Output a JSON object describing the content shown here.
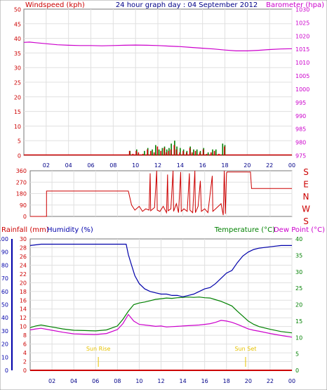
{
  "title": "24 hour graph day : 04 September 2012",
  "colors": {
    "wind": "#cc0000",
    "gust": "#008000",
    "baro": "#cc00cc",
    "rain": "#cc0000",
    "humidity": "#0000aa",
    "temp": "#008000",
    "dew": "#cc00cc",
    "sun": "#e6c200",
    "axis": "#888888"
  },
  "x_ticks": [
    "02",
    "04",
    "06",
    "08",
    "10",
    "12",
    "14",
    "16",
    "18",
    "20",
    "22",
    "00"
  ],
  "chart_data": [
    {
      "type": "bar",
      "name": "wind-baro",
      "left_label": "Windspeed (kph)",
      "right_label": "Barometer (hpa)",
      "left_ticks": [
        "0",
        "5",
        "10",
        "15",
        "20",
        "25",
        "30",
        "35",
        "40",
        "45",
        "50"
      ],
      "right_ticks": [
        "975",
        "980",
        "985",
        "990",
        "995",
        "1000",
        "1005",
        "1010",
        "1015",
        "1020",
        "1025",
        "1030"
      ],
      "ylim_left": [
        0,
        50
      ],
      "ylim_right": [
        975,
        1030
      ],
      "xlim": [
        0,
        24
      ],
      "barometer": [
        [
          0,
          1017.5
        ],
        [
          0.5,
          1017.6
        ],
        [
          1,
          1017.4
        ],
        [
          2,
          1017.0
        ],
        [
          3,
          1016.6
        ],
        [
          4,
          1016.4
        ],
        [
          5,
          1016.3
        ],
        [
          6,
          1016.3
        ],
        [
          7,
          1016.2
        ],
        [
          8,
          1016.3
        ],
        [
          9,
          1016.4
        ],
        [
          10,
          1016.5
        ],
        [
          11,
          1016.4
        ],
        [
          12,
          1016.3
        ],
        [
          13,
          1016.1
        ],
        [
          14,
          1015.9
        ],
        [
          15,
          1015.6
        ],
        [
          16,
          1015.3
        ],
        [
          17,
          1015.0
        ],
        [
          18,
          1014.6
        ],
        [
          19,
          1014.3
        ],
        [
          20,
          1014.3
        ],
        [
          21,
          1014.5
        ],
        [
          22,
          1014.8
        ],
        [
          23,
          1015.0
        ],
        [
          24,
          1015.1
        ]
      ],
      "windspeed_bars": [
        [
          9.4,
          1.5
        ],
        [
          9.7,
          0.5
        ],
        [
          10.0,
          1.5
        ],
        [
          10.2,
          1.0
        ],
        [
          10.6,
          0.5
        ],
        [
          11.0,
          2.0
        ],
        [
          11.3,
          1.5
        ],
        [
          11.6,
          1.0
        ],
        [
          11.9,
          3.0
        ],
        [
          12.2,
          1.5
        ],
        [
          12.5,
          2.5
        ],
        [
          12.7,
          1.0
        ],
        [
          12.9,
          1.5
        ],
        [
          13.1,
          2.0
        ],
        [
          13.4,
          3.5
        ],
        [
          13.6,
          2.0
        ],
        [
          13.9,
          1.0
        ],
        [
          14.2,
          1.5
        ],
        [
          14.5,
          1.0
        ],
        [
          14.8,
          2.5
        ],
        [
          15.0,
          1.0
        ],
        [
          15.3,
          1.5
        ],
        [
          15.7,
          1.0
        ],
        [
          16.0,
          2.0
        ],
        [
          16.3,
          0.5
        ],
        [
          16.7,
          1.0
        ],
        [
          17.0,
          1.5
        ],
        [
          17.4,
          0.5
        ],
        [
          17.9,
          3.0
        ]
      ],
      "gust_bars": [
        [
          9.5,
          1.5
        ],
        [
          10.1,
          2.0
        ],
        [
          10.8,
          1.5
        ],
        [
          11.1,
          2.5
        ],
        [
          11.5,
          2.0
        ],
        [
          11.8,
          3.5
        ],
        [
          12.1,
          2.0
        ],
        [
          12.4,
          2.5
        ],
        [
          12.6,
          3.0
        ],
        [
          12.8,
          2.0
        ],
        [
          13.0,
          2.5
        ],
        [
          13.2,
          4.0
        ],
        [
          13.5,
          5.0
        ],
        [
          13.7,
          3.0
        ],
        [
          14.0,
          2.5
        ],
        [
          14.3,
          2.0
        ],
        [
          14.6,
          1.5
        ],
        [
          14.9,
          3.0
        ],
        [
          15.2,
          2.0
        ],
        [
          15.5,
          2.0
        ],
        [
          15.8,
          1.5
        ],
        [
          16.1,
          2.5
        ],
        [
          16.5,
          1.0
        ],
        [
          16.9,
          2.0
        ],
        [
          17.2,
          2.0
        ],
        [
          17.8,
          4.0
        ],
        [
          18.0,
          3.5
        ]
      ]
    },
    {
      "type": "line",
      "name": "wind-direction",
      "left_ticks": [
        "0",
        "90",
        "180",
        "270",
        "360"
      ],
      "right_labels": [
        "S",
        "E",
        "N",
        "W",
        "S"
      ],
      "ylim": [
        0,
        360
      ],
      "xlim": [
        0,
        24
      ],
      "direction": [
        [
          0,
          0
        ],
        [
          1.5,
          0
        ],
        [
          1.5,
          200
        ],
        [
          9.0,
          200
        ],
        [
          9.3,
          90
        ],
        [
          9.6,
          50
        ],
        [
          10.0,
          80
        ],
        [
          10.3,
          40
        ],
        [
          10.6,
          60
        ],
        [
          10.9,
          50
        ],
        [
          11.0,
          340
        ],
        [
          11.05,
          45
        ],
        [
          11.4,
          70
        ],
        [
          11.6,
          360
        ],
        [
          11.65,
          50
        ],
        [
          11.9,
          40
        ],
        [
          12.2,
          80
        ],
        [
          12.5,
          30
        ],
        [
          12.6,
          330
        ],
        [
          12.65,
          45
        ],
        [
          12.9,
          60
        ],
        [
          13.1,
          360
        ],
        [
          13.15,
          40
        ],
        [
          13.4,
          100
        ],
        [
          13.6,
          30
        ],
        [
          13.8,
          350
        ],
        [
          13.85,
          40
        ],
        [
          14.1,
          60
        ],
        [
          14.4,
          40
        ],
        [
          14.6,
          340
        ],
        [
          14.65,
          50
        ],
        [
          14.9,
          30
        ],
        [
          15.1,
          360
        ],
        [
          15.15,
          30
        ],
        [
          15.4,
          80
        ],
        [
          15.6,
          280
        ],
        [
          15.7,
          40
        ],
        [
          16.0,
          60
        ],
        [
          16.3,
          30
        ],
        [
          16.7,
          320
        ],
        [
          16.75,
          40
        ],
        [
          17.0,
          60
        ],
        [
          17.5,
          100
        ],
        [
          17.7,
          10
        ],
        [
          17.8,
          360
        ],
        [
          17.9,
          20
        ],
        [
          18.0,
          340
        ],
        [
          18.05,
          350
        ],
        [
          18.3,
          350
        ],
        [
          20.2,
          350
        ],
        [
          20.3,
          220
        ],
        [
          24,
          220
        ]
      ]
    },
    {
      "type": "line",
      "name": "temp-humidity",
      "left_label": "Rainfall (mm)",
      "humidity_label": "Humidity (%)",
      "right_label": "Temperature (°C)",
      "dew_label": "Dew Point (°C)",
      "rain_ticks": [
        "0",
        "2",
        "4",
        "6",
        "8",
        "10",
        "12",
        "14",
        "16",
        "18",
        "20",
        "22",
        "24",
        "26",
        "28",
        "30"
      ],
      "humidity_ticks": [
        "0",
        "10",
        "20",
        "30",
        "40",
        "50",
        "60",
        "70",
        "80",
        "90",
        "100"
      ],
      "temp_ticks": [
        "0",
        "5",
        "10",
        "15",
        "20",
        "25",
        "30",
        "35",
        "40"
      ],
      "rain_lim": [
        0,
        30
      ],
      "humidity_lim": [
        0,
        100
      ],
      "temp_lim": [
        0,
        40
      ],
      "xlim": [
        0,
        24
      ],
      "sunrise_label": "Sun Rise",
      "sunset_label": "Sun Set",
      "sunrise": 6.25,
      "sunset": 19.75,
      "rainfall": [
        [
          0,
          0
        ],
        [
          24,
          0
        ]
      ],
      "humidity": [
        [
          0,
          95
        ],
        [
          1,
          96
        ],
        [
          2,
          96
        ],
        [
          3,
          96
        ],
        [
          4,
          96
        ],
        [
          5,
          96
        ],
        [
          6,
          96
        ],
        [
          7,
          96
        ],
        [
          8,
          96
        ],
        [
          8.8,
          96
        ],
        [
          9.0,
          88
        ],
        [
          9.3,
          80
        ],
        [
          9.6,
          72
        ],
        [
          10.0,
          66
        ],
        [
          10.5,
          62
        ],
        [
          11.0,
          60
        ],
        [
          11.5,
          59
        ],
        [
          12.0,
          58
        ],
        [
          12.5,
          58
        ],
        [
          13.0,
          57
        ],
        [
          13.5,
          57
        ],
        [
          14.0,
          56
        ],
        [
          14.5,
          57
        ],
        [
          15.0,
          58
        ],
        [
          15.5,
          60
        ],
        [
          16.0,
          62
        ],
        [
          16.5,
          63
        ],
        [
          17.0,
          66
        ],
        [
          17.5,
          70
        ],
        [
          18.0,
          74
        ],
        [
          18.5,
          76
        ],
        [
          19.0,
          82
        ],
        [
          19.5,
          87
        ],
        [
          20.0,
          90
        ],
        [
          20.5,
          92
        ],
        [
          21.0,
          93
        ],
        [
          22,
          94
        ],
        [
          23,
          95
        ],
        [
          24,
          95
        ]
      ],
      "temperature": [
        [
          0,
          13.0
        ],
        [
          0.5,
          13.5
        ],
        [
          1,
          13.8
        ],
        [
          2,
          13.2
        ],
        [
          3,
          12.6
        ],
        [
          4,
          12.2
        ],
        [
          5,
          12.1
        ],
        [
          6,
          12.0
        ],
        [
          7,
          12.3
        ],
        [
          8,
          13.5
        ],
        [
          8.5,
          15.5
        ],
        [
          9.0,
          18.0
        ],
        [
          9.5,
          20.0
        ],
        [
          10.0,
          20.5
        ],
        [
          10.5,
          20.8
        ],
        [
          11.0,
          21.2
        ],
        [
          11.5,
          21.6
        ],
        [
          12.0,
          21.8
        ],
        [
          12.5,
          22.0
        ],
        [
          13.0,
          21.9
        ],
        [
          13.5,
          22.1
        ],
        [
          14.0,
          22.2
        ],
        [
          14.5,
          22.3
        ],
        [
          15.0,
          22.2
        ],
        [
          15.5,
          22.3
        ],
        [
          16.0,
          22.1
        ],
        [
          16.5,
          22.0
        ],
        [
          17.0,
          21.5
        ],
        [
          17.5,
          21.0
        ],
        [
          18.0,
          20.3
        ],
        [
          18.5,
          19.6
        ],
        [
          19.0,
          18.0
        ],
        [
          19.5,
          16.5
        ],
        [
          20.0,
          15.0
        ],
        [
          20.5,
          14.0
        ],
        [
          21.0,
          13.3
        ],
        [
          22.0,
          12.5
        ],
        [
          23.0,
          11.8
        ],
        [
          24,
          11.4
        ]
      ],
      "dew_point": [
        [
          0,
          12.3
        ],
        [
          0.5,
          12.6
        ],
        [
          1,
          12.8
        ],
        [
          2,
          12.2
        ],
        [
          3,
          11.6
        ],
        [
          4,
          11.1
        ],
        [
          5,
          11.0
        ],
        [
          6,
          10.9
        ],
        [
          7,
          11.2
        ],
        [
          8,
          12.4
        ],
        [
          8.5,
          14.2
        ],
        [
          9.0,
          17.0
        ],
        [
          9.5,
          15.0
        ],
        [
          10.0,
          14.0
        ],
        [
          10.5,
          13.8
        ],
        [
          11.0,
          13.6
        ],
        [
          11.5,
          13.4
        ],
        [
          12.0,
          13.5
        ],
        [
          12.5,
          13.2
        ],
        [
          13.0,
          13.3
        ],
        [
          13.5,
          13.4
        ],
        [
          14.0,
          13.5
        ],
        [
          14.5,
          13.6
        ],
        [
          15.0,
          13.7
        ],
        [
          15.5,
          13.8
        ],
        [
          16.0,
          14.0
        ],
        [
          16.5,
          14.2
        ],
        [
          17.0,
          14.6
        ],
        [
          17.5,
          15.2
        ],
        [
          18.0,
          15.0
        ],
        [
          18.5,
          14.6
        ],
        [
          19.0,
          14.0
        ],
        [
          19.5,
          13.3
        ],
        [
          20.0,
          12.6
        ],
        [
          20.5,
          12.2
        ],
        [
          21.0,
          11.9
        ],
        [
          22.0,
          11.2
        ],
        [
          23.0,
          10.6
        ],
        [
          24,
          10.1
        ]
      ]
    }
  ]
}
